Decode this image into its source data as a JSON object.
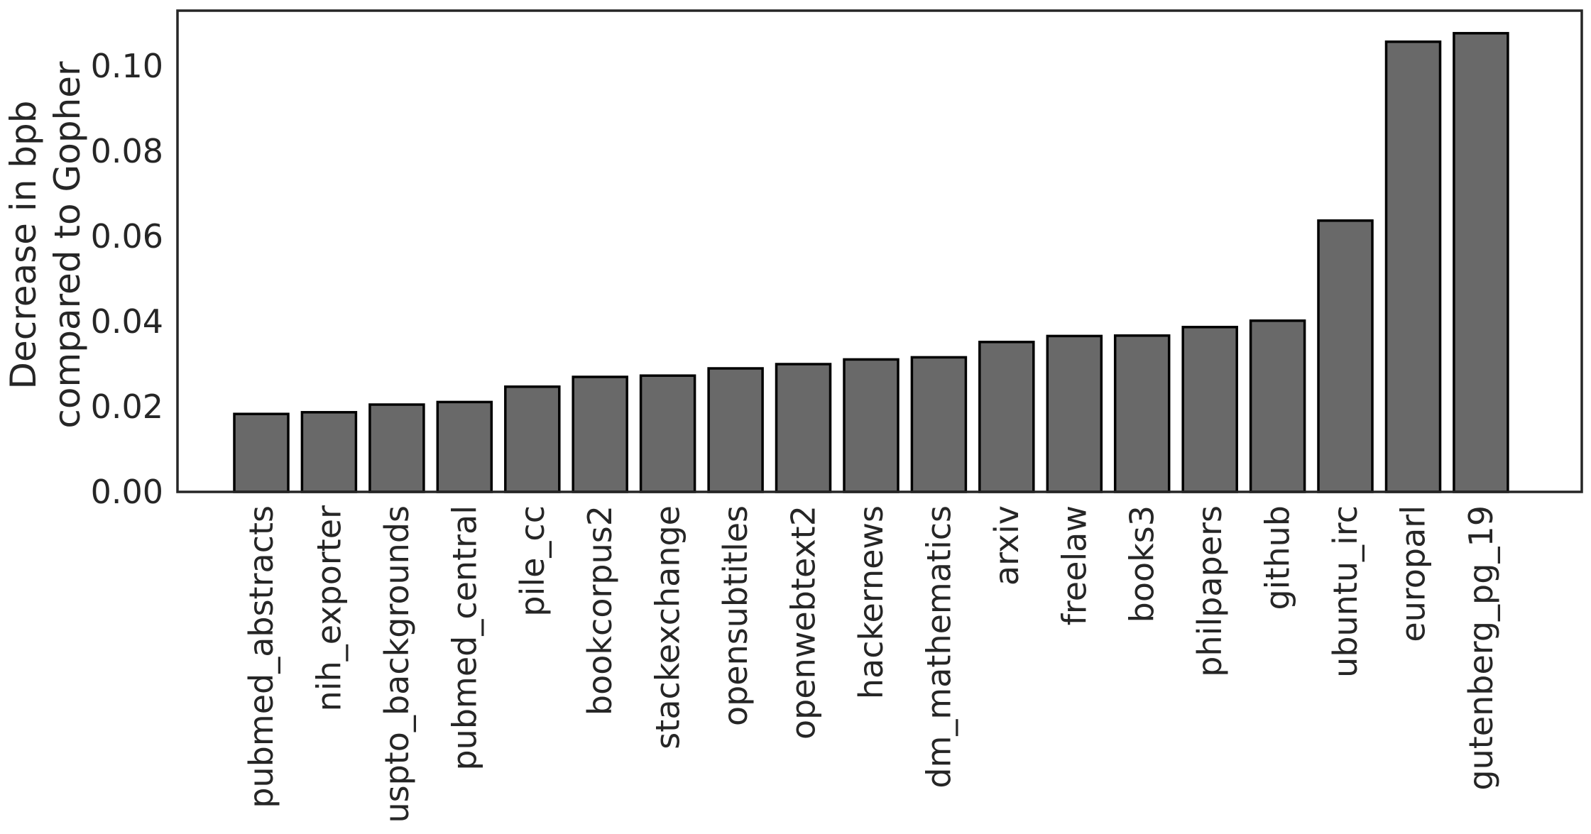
{
  "chart_data": {
    "type": "bar",
    "categories": [
      "pubmed_abstracts",
      "nih_exporter",
      "uspto_backgrounds",
      "pubmed_central",
      "pile_cc",
      "bookcorpus2",
      "stackexchange",
      "opensubtitles",
      "openwebtext2",
      "hackernews",
      "dm_mathematics",
      "arxiv",
      "freelaw",
      "books3",
      "philpapers",
      "github",
      "ubuntu_irc",
      "europarl",
      "gutenberg_pg_19"
    ],
    "values": [
      0.0183,
      0.0187,
      0.0205,
      0.0211,
      0.0247,
      0.027,
      0.0273,
      0.029,
      0.03,
      0.0311,
      0.0316,
      0.0352,
      0.0366,
      0.0367,
      0.0387,
      0.0402,
      0.0637,
      0.1057,
      0.1077
    ],
    "title": "",
    "xlabel": "",
    "ylabel_lines": [
      "Decrease in bpb",
      "compared to Gopher"
    ],
    "ylim": [
      0,
      0.113
    ],
    "yticks": [
      0.0,
      0.02,
      0.04,
      0.06,
      0.08,
      0.1
    ],
    "ytick_labels": [
      "0.00",
      "0.02",
      "0.04",
      "0.06",
      "0.08",
      "0.10"
    ],
    "grid": false,
    "bar_color": "#696969",
    "edge_color": "#000000"
  }
}
